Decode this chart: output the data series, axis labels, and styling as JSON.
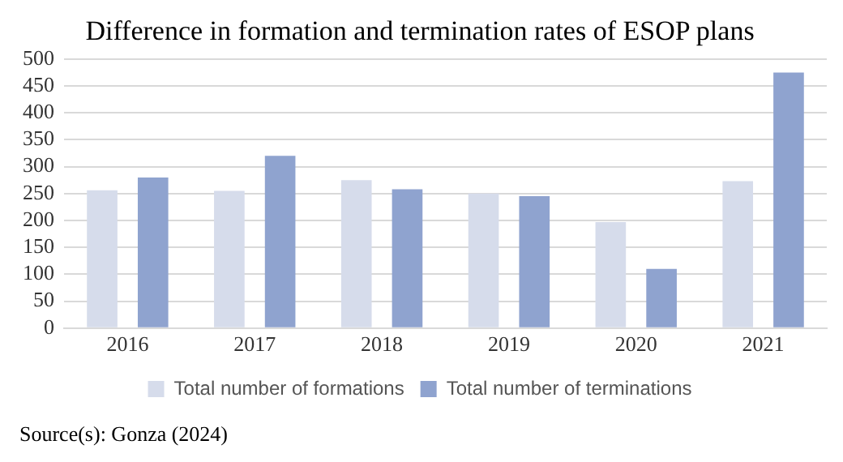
{
  "chart_data": {
    "type": "bar",
    "title": "Difference in formation and termination rates of ESOP plans",
    "categories": [
      "2016",
      "2017",
      "2018",
      "2019",
      "2020",
      "2021"
    ],
    "series": [
      {
        "name": "Total number of formations",
        "color": "#d6dceb",
        "values": [
          256,
          255,
          275,
          250,
          197,
          273
        ]
      },
      {
        "name": "Total number of terminations",
        "color": "#8fa3cf",
        "values": [
          280,
          320,
          258,
          245,
          110,
          475
        ]
      }
    ],
    "ylim": [
      0,
      500
    ],
    "yticks": [
      0,
      50,
      100,
      150,
      200,
      250,
      300,
      350,
      400,
      450,
      500
    ],
    "grid": "y",
    "legend": "bottom",
    "annotations": [
      "Source(s): Gonza (2024)"
    ]
  }
}
